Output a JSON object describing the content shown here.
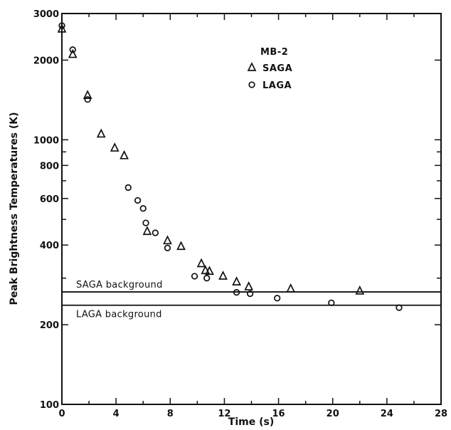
{
  "chart_data": {
    "type": "scatter",
    "title": "",
    "xlabel": "Time (s)",
    "ylabel": "Peak Brightness Temperatures (K)",
    "xlim": [
      0,
      28
    ],
    "ylim": [
      100,
      3000
    ],
    "yscale": "log",
    "x_ticks": [
      0,
      4,
      8,
      12,
      16,
      20,
      24,
      28
    ],
    "x_minor_step": 2,
    "y_ticks": [
      100,
      200,
      400,
      600,
      800,
      1000,
      2000,
      3000
    ],
    "y_minor_ticks": [
      300,
      500,
      700,
      900
    ],
    "grid": false,
    "legend": {
      "title": "MB-2",
      "position": "top-right",
      "entries": [
        {
          "label": "SAGA",
          "marker": "triangle"
        },
        {
          "label": "LAGA",
          "marker": "circle"
        }
      ]
    },
    "series": [
      {
        "name": "SAGA",
        "marker": "triangle",
        "points": [
          [
            0,
            2620
          ],
          [
            0.8,
            2100
          ],
          [
            1.9,
            1470
          ],
          [
            2.9,
            1050
          ],
          [
            3.9,
            930
          ],
          [
            4.6,
            870
          ],
          [
            6.3,
            450
          ],
          [
            7.8,
            415
          ],
          [
            8.8,
            395
          ],
          [
            10.3,
            340
          ],
          [
            10.6,
            320
          ],
          [
            10.9,
            318
          ],
          [
            11.9,
            305
          ],
          [
            12.9,
            290
          ],
          [
            13.8,
            278
          ],
          [
            16.9,
            273
          ],
          [
            22.0,
            268
          ]
        ]
      },
      {
        "name": "LAGA",
        "marker": "circle",
        "points": [
          [
            0,
            2700
          ],
          [
            0.8,
            2190
          ],
          [
            1.9,
            1420
          ],
          [
            4.9,
            660
          ],
          [
            5.6,
            590
          ],
          [
            6.0,
            550
          ],
          [
            6.2,
            485
          ],
          [
            6.9,
            445
          ],
          [
            7.8,
            390
          ],
          [
            9.8,
            305
          ],
          [
            10.7,
            300
          ],
          [
            12.9,
            265
          ],
          [
            13.9,
            262
          ],
          [
            15.9,
            252
          ],
          [
            19.9,
            242
          ],
          [
            24.9,
            232
          ]
        ]
      }
    ],
    "reference_lines": [
      {
        "label": "SAGA background",
        "y": 266
      },
      {
        "label": "LAGA background",
        "y": 237
      }
    ]
  }
}
